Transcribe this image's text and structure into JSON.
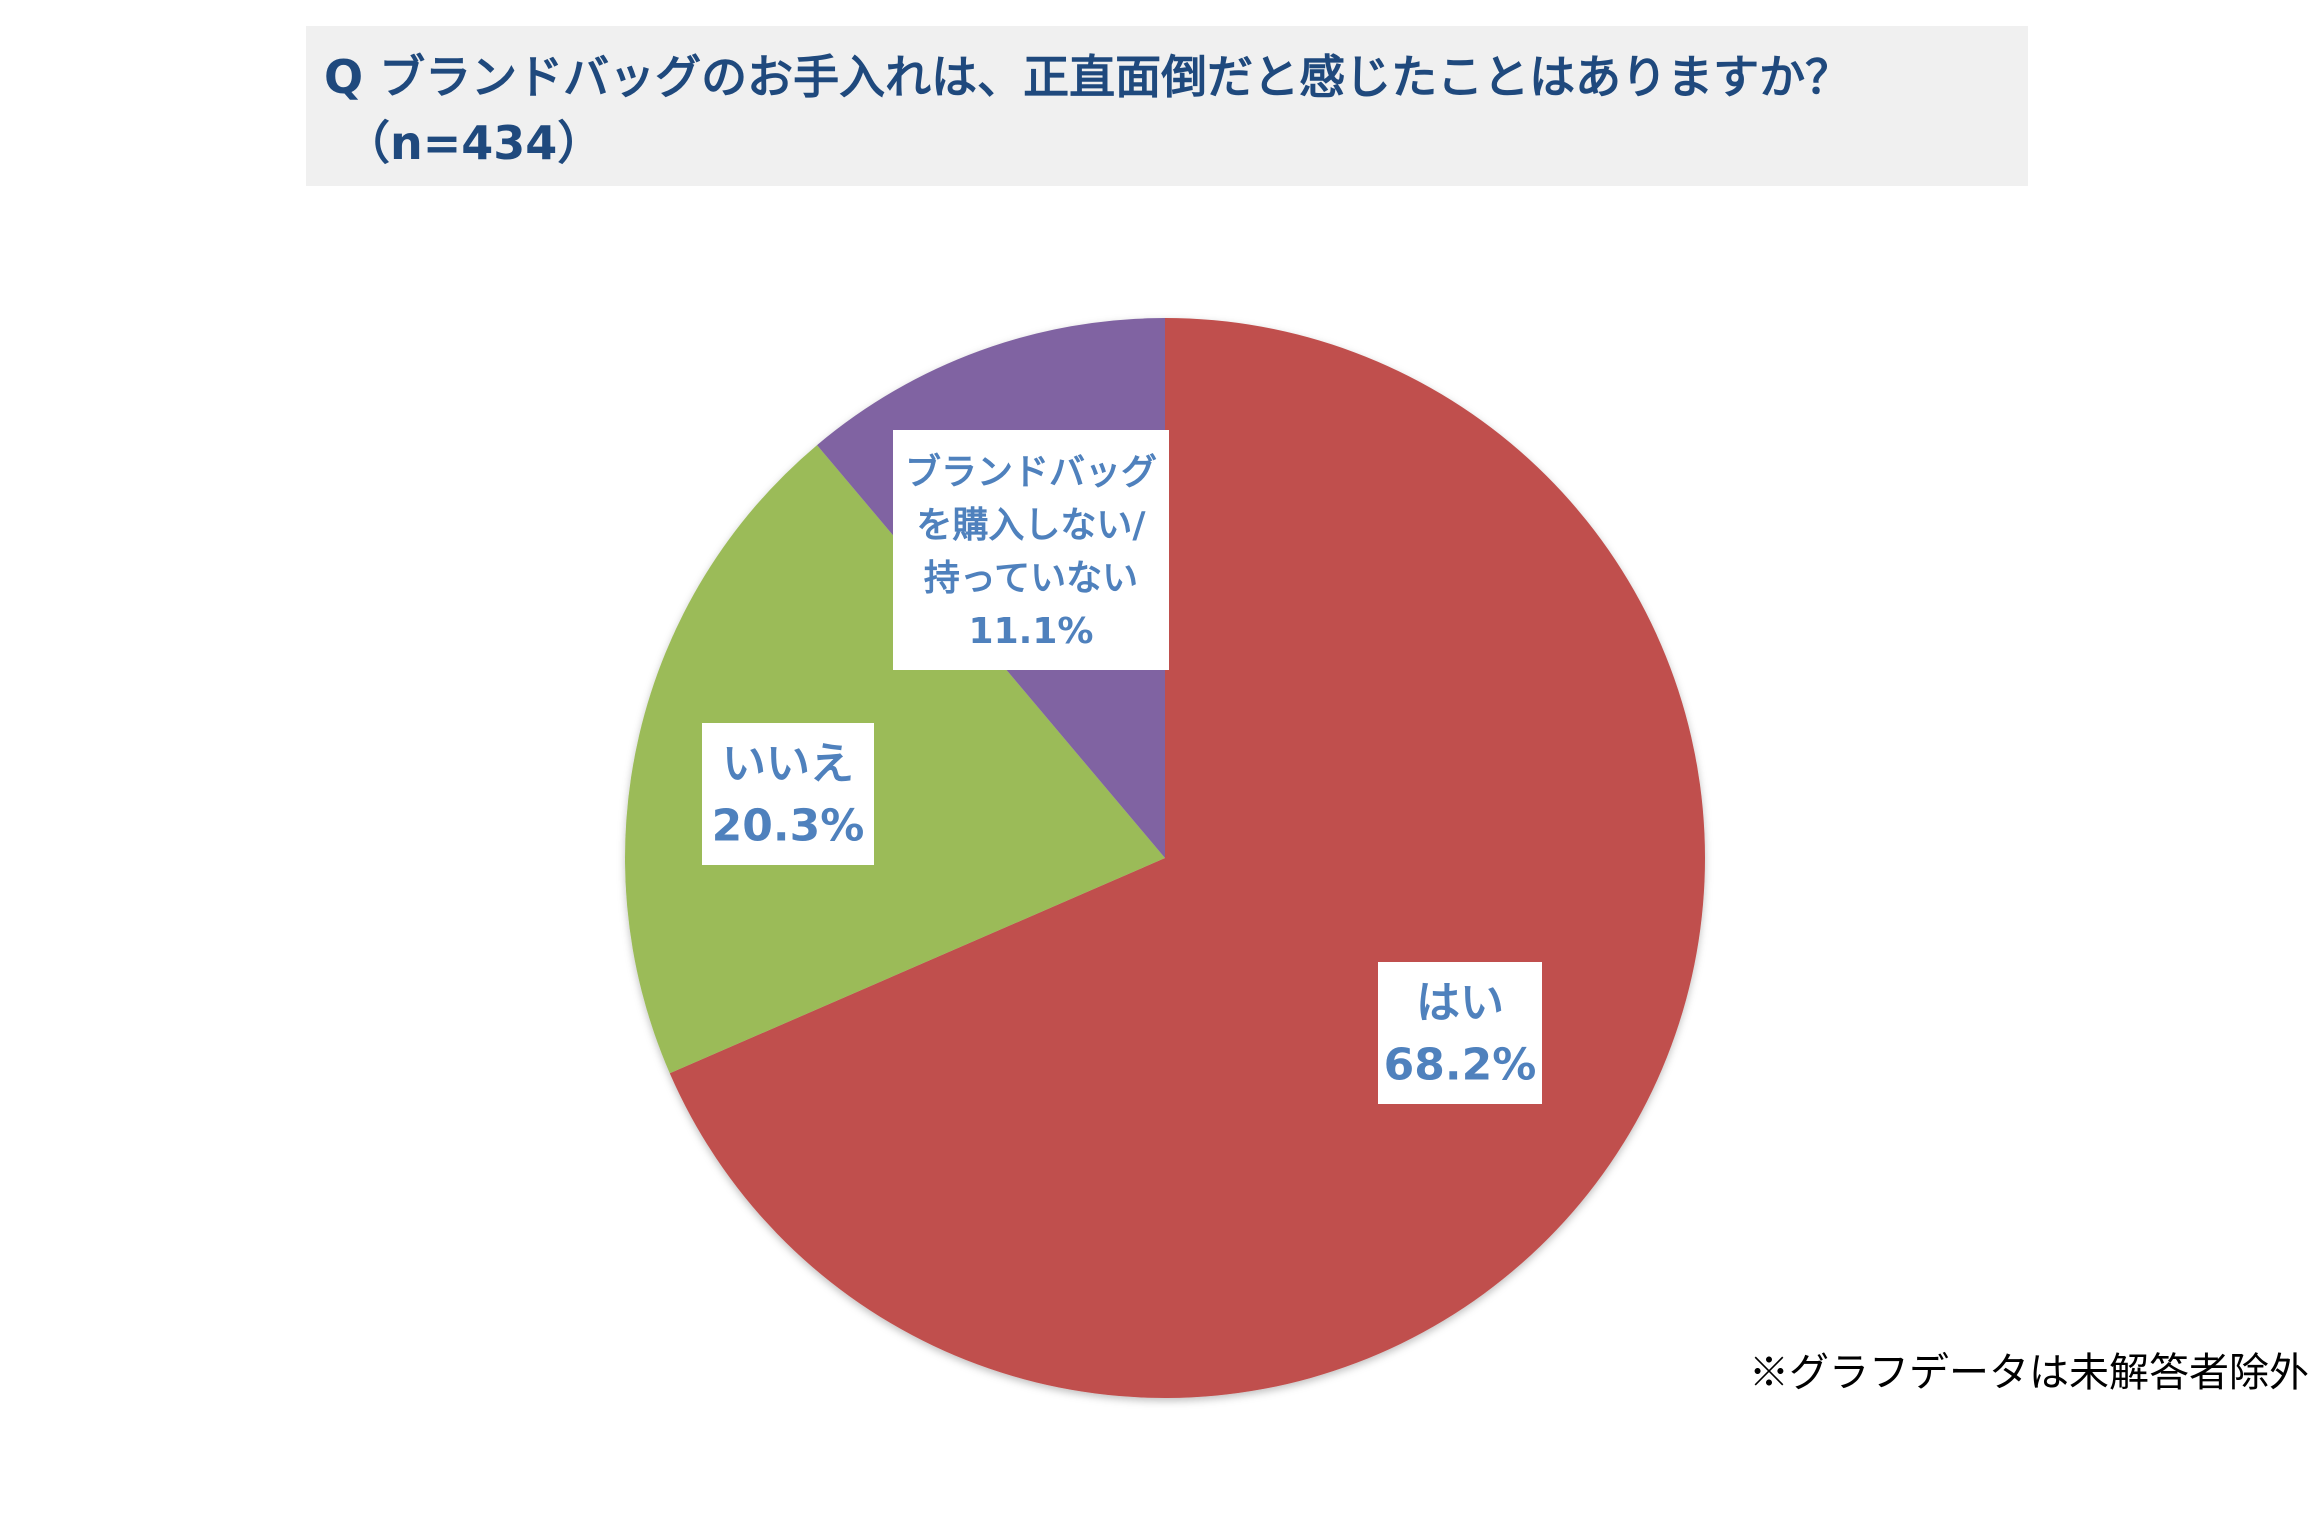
{
  "title": {
    "line1": "Q ブランドバッグのお手入れは、正直面倒だと感じたことはありますか？",
    "line2": "（n=434）"
  },
  "footnote": "※グラフデータは未解答者除外",
  "chart_data": {
    "type": "pie",
    "start": "12 o'clock",
    "direction": "clockwise",
    "slices": [
      {
        "label": "はい",
        "value": 68.2,
        "value_label": "68.2%",
        "color": "#c0504d"
      },
      {
        "label": "いいえ",
        "value": 20.3,
        "value_label": "20.3%",
        "color": "#9bbb59"
      },
      {
        "label": "ブランドバッグを購入しない/持っていない",
        "label_lines": [
          "ブランドバッグ",
          "を購入しない/",
          "持っていない"
        ],
        "value": 11.1,
        "value_label": "11.1%",
        "color": "#8064a2"
      }
    ],
    "label_color": "#4f81bd"
  }
}
